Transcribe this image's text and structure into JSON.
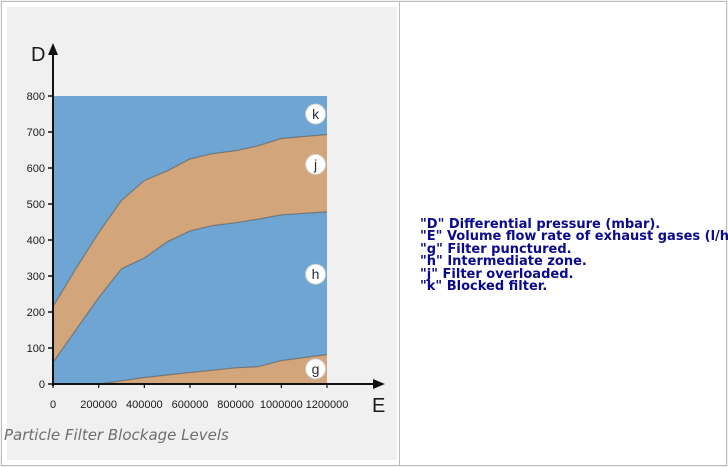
{
  "chart_data": {
    "type": "area",
    "title": "",
    "xlabel": "E",
    "ylabel": "D",
    "xlim": [
      0,
      1200000
    ],
    "ylim": [
      0,
      800
    ],
    "x_ticks": [
      0,
      200000,
      400000,
      600000,
      800000,
      1000000,
      1200000
    ],
    "y_ticks": [
      0,
      100,
      200,
      300,
      400,
      500,
      600,
      700,
      800
    ],
    "grid": false,
    "colors": {
      "zone_blue": "#6ea5d2",
      "zone_tan": "#d2a67a",
      "line": "#555555"
    },
    "boundaries": {
      "g_upper": {
        "x": [
          0,
          200000,
          400000,
          600000,
          800000,
          900000,
          1000000,
          1200000
        ],
        "y": [
          0,
          0,
          18,
          32,
          45,
          48,
          65,
          82
        ]
      },
      "h_upper": {
        "x": [
          0,
          100000,
          200000,
          300000,
          400000,
          500000,
          600000,
          700000,
          800000,
          900000,
          1000000,
          1200000
        ],
        "y": [
          60,
          150,
          240,
          320,
          350,
          395,
          425,
          440,
          448,
          458,
          470,
          478
        ]
      },
      "j_upper": {
        "x": [
          0,
          100000,
          200000,
          300000,
          400000,
          500000,
          600000,
          700000,
          800000,
          900000,
          1000000,
          1200000
        ],
        "y": [
          215,
          320,
          420,
          510,
          565,
          592,
          625,
          640,
          648,
          662,
          682,
          693
        ]
      },
      "k_upper": {
        "x": [
          0,
          1200000
        ],
        "y": [
          800,
          800
        ]
      }
    },
    "zone_labels": [
      {
        "text": "k",
        "x": 1150000,
        "y": 750
      },
      {
        "text": "j",
        "x": 1150000,
        "y": 610
      },
      {
        "text": "h",
        "x": 1150000,
        "y": 305
      },
      {
        "text": "g",
        "x": 1150000,
        "y": 42
      }
    ]
  },
  "caption": "Particle Filter Blockage Levels",
  "legend": [
    "\"D\" Differential pressure (mbar).",
    "\"E\" Volume flow rate of exhaust gases (l/h).",
    "\"g\" Filter punctured.",
    "\"h\" Intermediate zone.",
    "\"j\" Filter overloaded.",
    "\"k\" Blocked filter."
  ]
}
